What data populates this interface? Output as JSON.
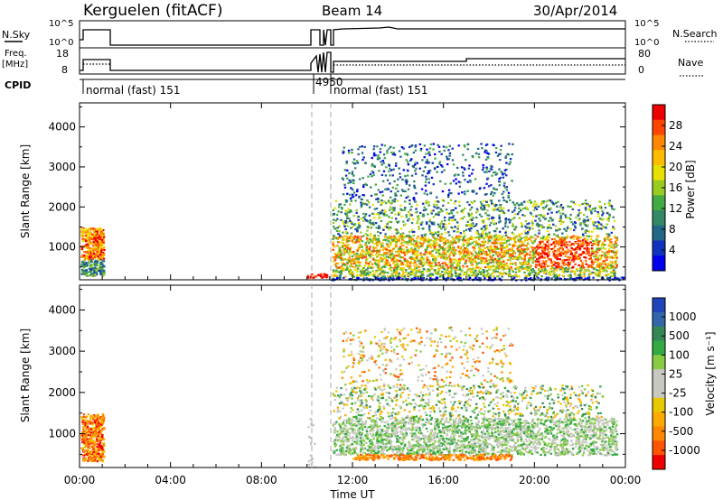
{
  "header": {
    "station": "Kerguelen (fitACF)",
    "beam": "Beam 14",
    "date": "30/Apr/2014"
  },
  "panels_top": {
    "nsky_label": "N.Sky",
    "nsky_ticks": [
      "10^5",
      "10^0"
    ],
    "nsearch_label": "N.Search",
    "nsearch_ticks": [
      "10^5",
      "10^0"
    ],
    "freq_label_1": "Freq.",
    "freq_label_2": "[MHz]",
    "freq_ticks": [
      "18",
      "8"
    ],
    "nave_label": "Nave",
    "nave_ticks": [
      "80",
      "0"
    ],
    "cpid_label": "CPID",
    "cpid_entries": [
      {
        "text": "normal (fast) 151",
        "hour": 0.1
      },
      {
        "text": "4950",
        "hour": 10.15
      },
      {
        "text": "normal (fast) 151",
        "hour": 11.15
      }
    ]
  },
  "chart_data": [
    {
      "type": "heatmap",
      "name": "power",
      "ylabel": "Slant Range [km]",
      "xlabel": "",
      "y_ticks": [
        1000,
        2000,
        3000,
        4000
      ],
      "ylim": [
        180,
        4600
      ],
      "xlim": [
        0,
        24
      ],
      "colorbar_label": "Power [dB]",
      "colorbar_ticks": [
        "28",
        "24",
        "20",
        "16",
        "12",
        "8",
        "4"
      ],
      "colorbar_colors": [
        "#ee0000",
        "#ff4400",
        "#ff8800",
        "#ffbb00",
        "#e8e000",
        "#99cc22",
        "#44aa44",
        "#338866",
        "#226688",
        "#1133bb",
        "#0000ee"
      ]
    },
    {
      "type": "heatmap",
      "name": "velocity",
      "ylabel": "Slant Range [km]",
      "xlabel": "Time UT",
      "y_ticks": [
        1000,
        2000,
        3000,
        4000
      ],
      "ylim": [
        180,
        4600
      ],
      "xlim": [
        0,
        24
      ],
      "x_tick_labels": [
        "00:00",
        "04:00",
        "08:00",
        "12:00",
        "16:00",
        "20:00",
        "00:00"
      ],
      "colorbar_label": "Velocity [m s⁻¹]",
      "colorbar_ticks": [
        "1000",
        "500",
        "100",
        "25",
        "-25",
        "-100",
        "-500",
        "-1000"
      ],
      "colorbar_colors": [
        "#2244bb",
        "#3366aa",
        "#338855",
        "#33aa44",
        "#88cc44",
        "#c8c8c0",
        "#c8c8c0",
        "#e8c800",
        "#ffaa00",
        "#ff8800",
        "#ff5500",
        "#ee0000"
      ]
    }
  ]
}
